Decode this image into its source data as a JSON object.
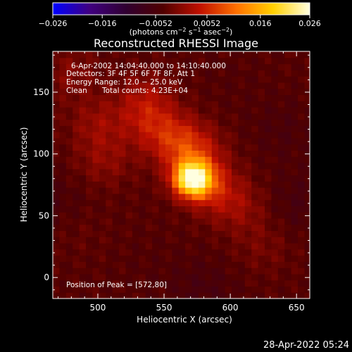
{
  "colorbar": {
    "ticks": [
      "−0.026",
      "−0.016",
      "−0.0052",
      "0.0052",
      "0.016",
      "0.026"
    ],
    "tick_values": [
      -0.026,
      -0.016,
      -0.0052,
      0.0052,
      0.016,
      0.026
    ],
    "range": [
      -0.026,
      0.026
    ],
    "unit_parts": {
      "a": "(photons cm",
      "a_sup": "−2",
      "b": " s",
      "b_sup": "−1",
      "c": " asec",
      "c_sup": "−2",
      "d": ")"
    },
    "colors": [
      "#0000ff",
      "#400080",
      "#300030",
      "#500000",
      "#c01000",
      "#ff7000",
      "#ffd000",
      "#ffffe0"
    ]
  },
  "chart_data": {
    "type": "heatmap",
    "title": "Reconstructed RHESSI Image",
    "xlabel": "Heliocentric X (arcsec)",
    "ylabel": "Heliocentric Y (arcsec)",
    "xlim": [
      466,
      660
    ],
    "ylim": [
      -17,
      183
    ],
    "xticks": [
      500,
      550,
      600,
      650
    ],
    "xtick_labels": [
      "500",
      "550",
      "600",
      "650"
    ],
    "yticks": [
      0,
      50,
      100,
      150
    ],
    "ytick_labels": [
      "0",
      "50",
      "100",
      "150"
    ],
    "peak": {
      "x": 572,
      "y": 80,
      "value": 0.026
    },
    "secondary_emission": [
      {
        "x": 560,
        "y": 110,
        "value": 0.007
      },
      {
        "x": 540,
        "y": 125,
        "value": 0.005
      },
      {
        "x": 535,
        "y": 145,
        "value": 0.0045
      },
      {
        "x": 500,
        "y": 125,
        "value": 0.004
      },
      {
        "x": 505,
        "y": 95,
        "value": 0.0035
      },
      {
        "x": 590,
        "y": 70,
        "value": 0.006
      },
      {
        "x": 575,
        "y": 100,
        "value": 0.006
      },
      {
        "x": 610,
        "y": 55,
        "value": 0.003
      },
      {
        "x": 480,
        "y": 165,
        "value": 0.003
      },
      {
        "x": 625,
        "y": 25,
        "value": 0.002
      },
      {
        "x": 485,
        "y": 40,
        "value": 0.001
      }
    ],
    "negative_regions": [
      {
        "x": 640,
        "y": 120,
        "value": -0.005
      },
      {
        "x": 650,
        "y": 60,
        "value": -0.0055
      },
      {
        "x": 470,
        "y": 60,
        "value": -0.005
      },
      {
        "x": 580,
        "y": -10,
        "value": -0.0055
      },
      {
        "x": 600,
        "y": 160,
        "value": -0.004
      },
      {
        "x": 540,
        "y": 10,
        "value": -0.004
      }
    ]
  },
  "annotations": {
    "line1": "6-Apr-2002 14:04:40.000 to 14:10:40.000",
    "line2": "Detectors: 3F 4F 5F 6F 7F 8F, Att 1",
    "line3": "Energy Range: 12.0 − 25.0 keV",
    "line4_left": "Clean",
    "line4_right": "Total counts: 4.23E+04",
    "peak_label": "Position of Peak = [572,80]"
  },
  "footer": {
    "timestamp": "28-Apr-2022 05:24"
  }
}
